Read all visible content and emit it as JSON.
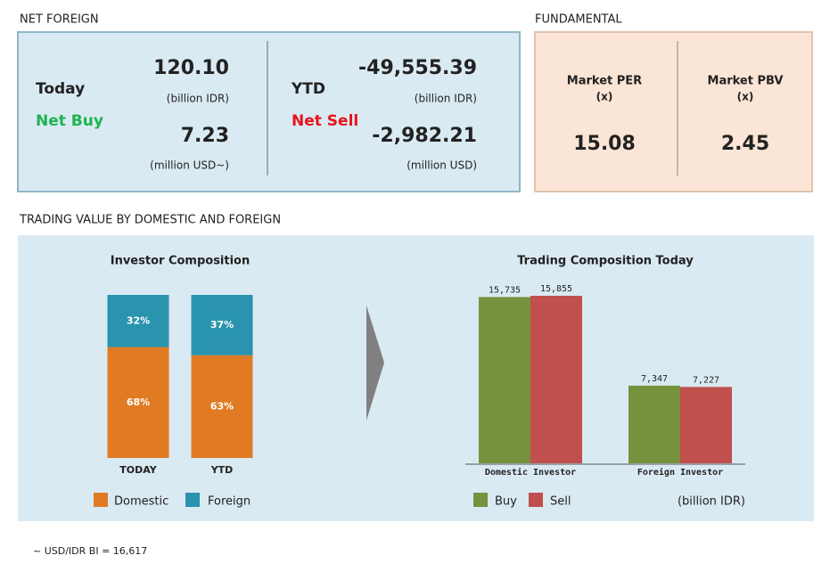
{
  "net_foreign": {
    "title": "NET FOREIGN",
    "today": {
      "label": "Today",
      "status": "Net Buy",
      "idr": "120.10",
      "idr_unit": "(billion IDR)",
      "usd": "7.23",
      "usd_unit": "(million USD~)"
    },
    "ytd": {
      "label": "YTD",
      "status": "Net Sell",
      "idr": "-49,555.39",
      "idr_unit": "(billion IDR)",
      "usd": "-2,982.21",
      "usd_unit": "(million USD)"
    }
  },
  "fundamental": {
    "title": "FUNDAMENTAL",
    "items": [
      {
        "label": "Market PER",
        "unit": "(x)",
        "value": "15.08"
      },
      {
        "label": "Market PBV",
        "unit": "(x)",
        "value": "2.45"
      }
    ]
  },
  "section_title": "TRADING VALUE BY DOMESTIC AND FOREIGN",
  "chart_data": [
    {
      "type": "bar",
      "stacked": true,
      "title": "Investor Composition",
      "categories": [
        "TODAY",
        "YTD"
      ],
      "series": [
        {
          "name": "Domestic",
          "color": "#e07b24",
          "values": [
            68,
            63
          ],
          "value_labels": [
            "68%",
            "63%"
          ]
        },
        {
          "name": "Foreign",
          "color": "#2a93ad",
          "values": [
            32,
            37
          ],
          "value_labels": [
            "32%",
            "37%"
          ]
        }
      ]
    },
    {
      "type": "bar",
      "stacked": false,
      "title": "Trading Composition Today",
      "unit": "(billion IDR)",
      "categories": [
        "Domestic Investor",
        "Foreign Investor"
      ],
      "series": [
        {
          "name": "Buy",
          "color": "#76923c",
          "values": [
            15735,
            7347
          ],
          "value_labels": [
            "15,735",
            "7,347"
          ]
        },
        {
          "name": "Sell",
          "color": "#c0504d",
          "values": [
            15855,
            7227
          ],
          "value_labels": [
            "15,855",
            "7,227"
          ]
        }
      ]
    }
  ],
  "footnote": "~ USD/IDR BI = 16,617"
}
